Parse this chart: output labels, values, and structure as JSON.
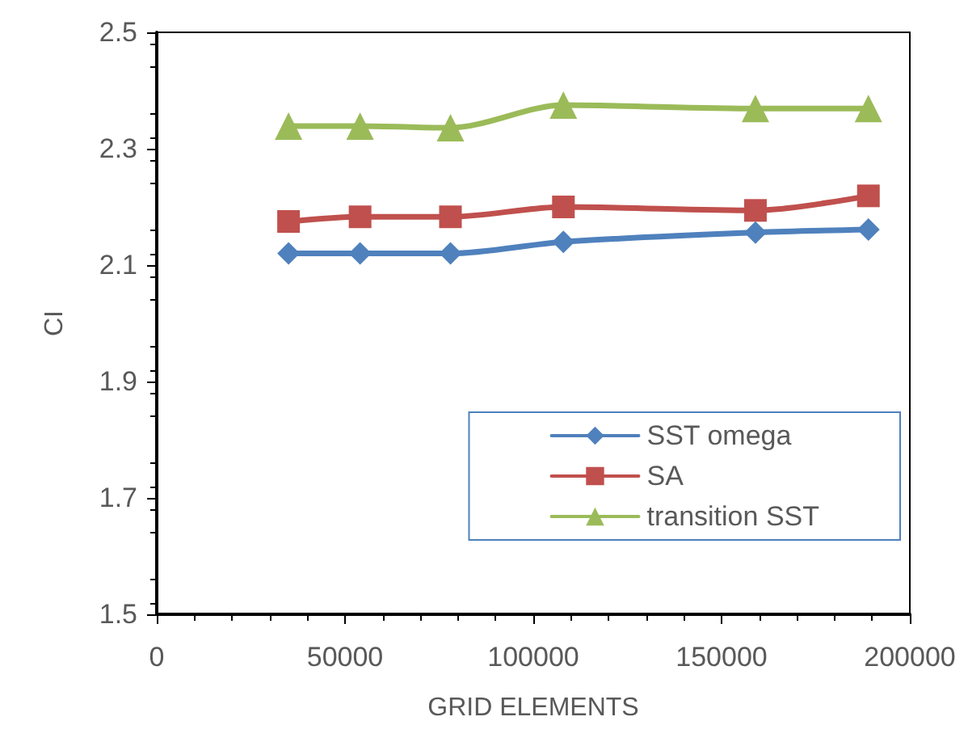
{
  "chart_data": {
    "type": "line",
    "xlabel": "GRID ELEMENTS",
    "ylabel": "CI",
    "x": [
      35000,
      54000,
      78000,
      108000,
      159000,
      189000
    ],
    "series": [
      {
        "name": "SST omega",
        "color": "#4f81bd",
        "marker": "diamond",
        "values": [
          2.12,
          2.12,
          2.12,
          2.14,
          2.156,
          2.161
        ]
      },
      {
        "name": "SA",
        "color": "#c0504d",
        "marker": "square",
        "values": [
          2.175,
          2.183,
          2.183,
          2.2,
          2.194,
          2.219
        ]
      },
      {
        "name": "transition SST",
        "color": "#9bbb59",
        "marker": "triangle",
        "values": [
          2.339,
          2.339,
          2.336,
          2.375,
          2.369,
          2.369
        ]
      }
    ],
    "xlim": [
      0,
      200000
    ],
    "xticks": [
      0,
      50000,
      100000,
      150000,
      200000
    ],
    "ylim": [
      1.5,
      2.5
    ],
    "yticks": [
      1.5,
      1.7,
      1.9,
      2.1,
      2.3,
      2.5
    ],
    "grid": false,
    "legend": "bottom right",
    "line_style": "solid"
  }
}
